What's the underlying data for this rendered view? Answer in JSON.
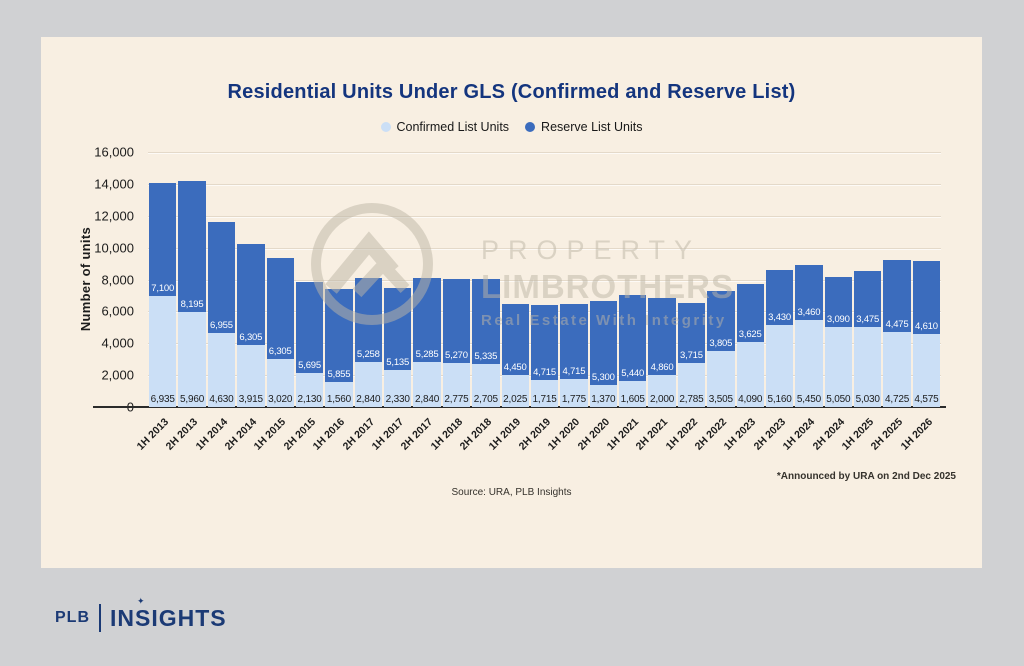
{
  "page": {
    "title": "Residential Units Under GLS (Confirmed and Reserve List)",
    "source_note": "Source: URA, PLB Insights",
    "footnote": "*Announced by URA on 2nd Dec 2025"
  },
  "legend": [
    {
      "label": "Confirmed List Units",
      "color": "#cbdff6"
    },
    {
      "label": "Reserve List Units",
      "color": "#3b6cbd"
    }
  ],
  "watermark": {
    "line1": "PROPERTY",
    "line2": "LIMBROTHERS",
    "tagline": "Real Estate With Integrity"
  },
  "logo": {
    "plb": "PLB",
    "insights": "INSIGHTS",
    "sparkle_glyph": "✦"
  },
  "colors": {
    "background": "#d0d1d3",
    "card": "#f8efe2",
    "title": "#14357e",
    "confirmed": "#cbdff6",
    "reserve": "#3b6cbd",
    "logo_navy": "#1b3a75"
  },
  "chart_data": {
    "type": "bar",
    "stacked": true,
    "title": "Residential Units Under GLS (Confirmed and Reserve List)",
    "xlabel": "",
    "ylabel": "Number of units",
    "ylim": [
      0,
      16000
    ],
    "ytick_step": 2000,
    "yticks": [
      "16,000",
      "14,000",
      "12,000",
      "10,000",
      "8,000",
      "6,000",
      "4,000",
      "2,000",
      "0"
    ],
    "grid": true,
    "legend_position": "top",
    "categories": [
      "1H 2013",
      "2H 2013",
      "1H 2014",
      "2H 2014",
      "1H 2015",
      "2H 2015",
      "1H 2016",
      "2H 2017",
      "1H 2017",
      "2H 2017",
      "1H 2018",
      "2H 2018",
      "1H 2019",
      "2H 2019",
      "1H 2020",
      "2H 2020",
      "1H 2021",
      "2H 2021",
      "1H 2022",
      "2H 2022",
      "1H 2023",
      "2H 2023",
      "1H 2024",
      "2H 2024",
      "1H 2025",
      "2H 2025",
      "1H 2026"
    ],
    "series": [
      {
        "name": "Confirmed List Units",
        "color": "#cbdff6",
        "values": [
          6935,
          5960,
          4630,
          3915,
          3020,
          2130,
          1560,
          2840,
          2330,
          2840,
          2775,
          2705,
          2025,
          1715,
          1775,
          1370,
          1605,
          2000,
          2785,
          3505,
          4090,
          5160,
          5450,
          5050,
          5030,
          4725,
          4575
        ],
        "labels": [
          "6,935",
          "5,960",
          "4,630",
          "3,915",
          "3,020",
          "2,130",
          "1,560",
          "2,840",
          "2,330",
          "2,840",
          "2,775",
          "2,705",
          "2,025",
          "1,715",
          "1,775",
          "1,370",
          "1,605",
          "2,000",
          "2,785",
          "3,505",
          "4,090",
          "5,160",
          "5,450",
          "5,050",
          "5,030",
          "4,725",
          "4,575"
        ]
      },
      {
        "name": "Reserve List Units",
        "color": "#3b6cbd",
        "values": [
          7100,
          8195,
          6955,
          6305,
          6305,
          5695,
          5855,
          5258,
          5135,
          5285,
          5270,
          5335,
          4450,
          4715,
          4715,
          5300,
          5440,
          4860,
          3715,
          3805,
          3625,
          3430,
          3460,
          3090,
          3475,
          4475,
          4610
        ],
        "labels": [
          "7,100",
          "8,195",
          "6,955",
          "6,305",
          "6,305",
          "5,695",
          "5,855",
          "5,258",
          "5,135",
          "5,285",
          "5,270",
          "5,335",
          "4,450",
          "4,715",
          "4,715",
          "5,300",
          "5,440",
          "4,860",
          "3,715",
          "3,805",
          "3,625",
          "3,430",
          "3,460",
          "3,090",
          "3,475",
          "4,475",
          "4,610"
        ]
      }
    ]
  }
}
